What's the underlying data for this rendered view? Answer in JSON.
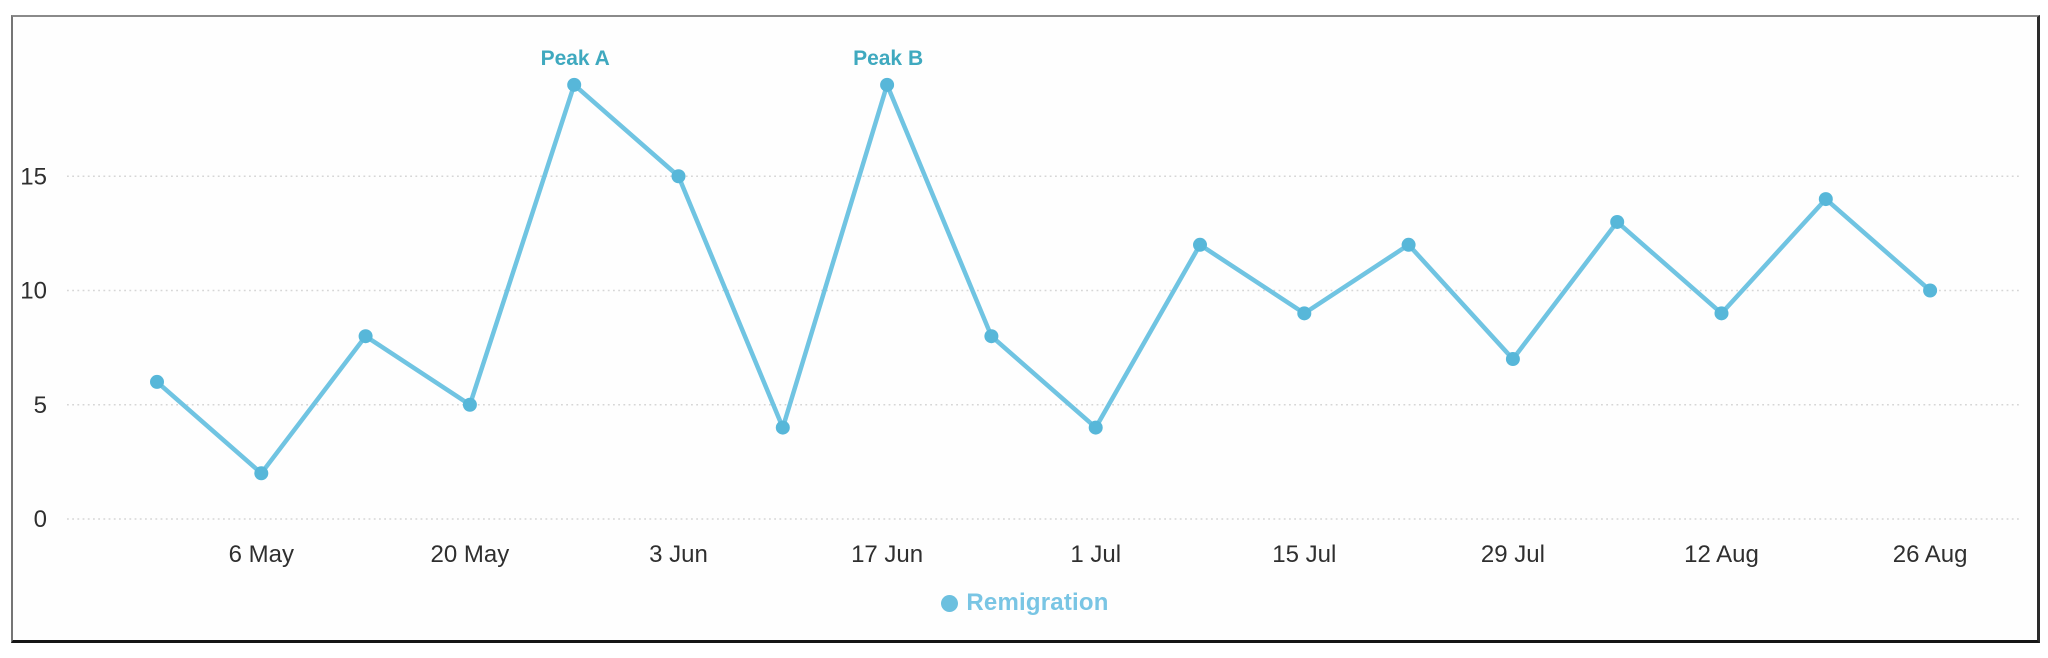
{
  "chart_data": {
    "type": "line",
    "title": "",
    "series": [
      {
        "name": "Remigration",
        "values": [
          6,
          2,
          8,
          5,
          19,
          15,
          4,
          19,
          8,
          4,
          12,
          9,
          12,
          7,
          13,
          9,
          14,
          10
        ]
      }
    ],
    "x_tick_labels": [
      "6 May",
      "20 May",
      "3 Jun",
      "17 Jun",
      "1 Jul",
      "15 Jul",
      "29 Jul",
      "12 Aug",
      "26 Aug"
    ],
    "x_ticks_at_point_indices": [
      1,
      3,
      5,
      7,
      9,
      11,
      13,
      15,
      17
    ],
    "y_ticks": [
      0,
      5,
      10,
      15
    ],
    "ylim": [
      0,
      21
    ],
    "grid": "horizontal-dotted",
    "legend_position": "bottom",
    "annotations": [
      {
        "text": "Peak A",
        "point_index": 4
      },
      {
        "text": "Peak B",
        "point_index": 7
      }
    ],
    "colors": {
      "line": "#70c4e2",
      "point": "#57b7d9",
      "annotation_text": "#3fa9bf",
      "legend_text": "#79c5e4",
      "legend_marker": "#6cc0df",
      "axis_text": "#2f2f2f",
      "gridline": "#d6d6d6"
    }
  }
}
